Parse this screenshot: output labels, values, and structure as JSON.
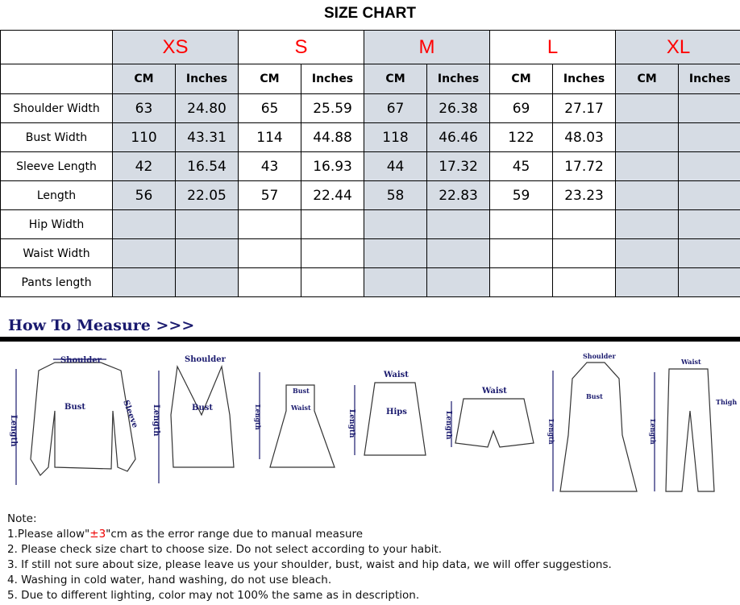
{
  "title": "SIZE CHART",
  "sizes": [
    "XS",
    "S",
    "M",
    "L",
    "XL"
  ],
  "units": [
    "CM",
    "Inches"
  ],
  "rows": [
    {
      "label": "Shoulder Width",
      "values": [
        "63",
        "24.80",
        "65",
        "25.59",
        "67",
        "26.38",
        "69",
        "27.17",
        "",
        ""
      ]
    },
    {
      "label": "Bust Width",
      "values": [
        "110",
        "43.31",
        "114",
        "44.88",
        "118",
        "46.46",
        "122",
        "48.03",
        "",
        ""
      ]
    },
    {
      "label": "Sleeve Length",
      "values": [
        "42",
        "16.54",
        "43",
        "16.93",
        "44",
        "17.32",
        "45",
        "17.72",
        "",
        ""
      ]
    },
    {
      "label": "Length",
      "values": [
        "56",
        "22.05",
        "57",
        "22.44",
        "58",
        "22.83",
        "59",
        "23.23",
        "",
        ""
      ]
    },
    {
      "label": "Hip Width",
      "values": [
        "",
        "",
        "",
        "",
        "",
        "",
        "",
        "",
        "",
        ""
      ]
    },
    {
      "label": "Waist Width",
      "values": [
        "",
        "",
        "",
        "",
        "",
        "",
        "",
        "",
        "",
        ""
      ]
    },
    {
      "label": "Pants length",
      "values": [
        "",
        "",
        "",
        "",
        "",
        "",
        "",
        "",
        "",
        ""
      ]
    }
  ],
  "highlight_color": "#d6dce4",
  "size_color": "#ff0000",
  "how_to_measure": "How To Measure >>>",
  "diagram_labels": {
    "shoulder": "Shoulder",
    "bust": "Bust",
    "sleeve": "Sleeve",
    "length": "Length",
    "waist": "Waist",
    "hips": "Hips",
    "thigh": "Thigh"
  },
  "notes": {
    "heading": "Note:",
    "line1_pre": "1.Please allow\"",
    "line1_red": "±3",
    "line1_post": "\"cm as the error range due to manual measure",
    "line2": "2. Please check size chart to choose size. Do not select according to your habit.",
    "line3": "3. If still not sure about size, please leave us your shoulder, bust, waist and hip data, we will offer suggestions.",
    "line4": "4. Washing in cold water, hand washing, do not use bleach.",
    "line5": "5. Due to different lighting, color may not 100% the same as in description."
  }
}
